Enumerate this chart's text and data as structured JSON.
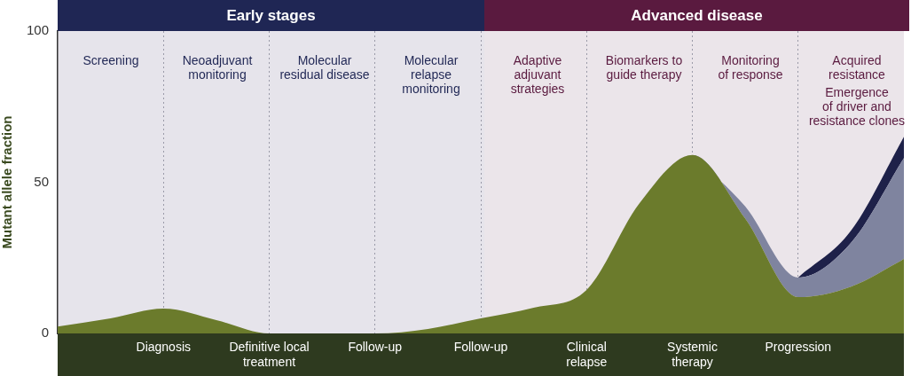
{
  "chart_data": {
    "type": "area",
    "ylabel": "Mutant allele fraction",
    "categories": [
      null,
      null,
      "Diagnosis",
      null,
      "Definitive local\ntreatment",
      null,
      "Follow-up",
      null,
      "Follow-up",
      null,
      "Clinical\nrelapse",
      null,
      "Systemic\ntherapy",
      null,
      "Progression",
      null,
      null
    ],
    "series": [
      {
        "color": "#6b7b2c",
        "values": [
          2.3,
          5,
          8.2,
          4.4,
          0,
          0,
          0,
          1.5,
          5,
          8.5,
          14.4,
          43,
          59,
          38,
          12,
          15.5,
          24.6
        ]
      },
      {
        "color": "#7f849f",
        "values": [
          null,
          null,
          null,
          null,
          null,
          null,
          null,
          null,
          null,
          null,
          null,
          null,
          0,
          4,
          6.5,
          14.5,
          33.4
        ]
      },
      {
        "color": "#1e2149",
        "values": [
          null,
          null,
          null,
          null,
          null,
          null,
          null,
          null,
          null,
          null,
          null,
          null,
          null,
          null,
          0,
          4,
          7
        ]
      }
    ],
    "stacked": true,
    "ylim": [
      0,
      100
    ],
    "yticks": [
      0,
      50,
      100
    ],
    "grid": "x",
    "annotations": [
      "Early stages",
      "Advanced disease",
      "Screening",
      "Neoadjuvant\nmonitoring",
      "Molecular\nresidual disease",
      "Molecular\nrelapse\nmonitoring",
      "Adaptive\nadjuvant\nstrategies",
      "Biomarkers to\nguide therapy",
      "Monitoring\nof response",
      "Acquired\nresistance",
      "Emergence\nof driver and\nresistance clones"
    ]
  }
}
